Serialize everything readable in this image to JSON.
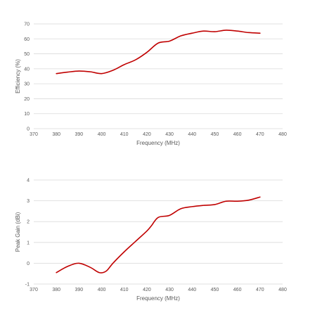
{
  "colors": {
    "series": "#c00000",
    "grid": "#d9d9d9",
    "text": "#595959"
  },
  "chart_data": [
    {
      "type": "line",
      "title": "",
      "xlabel": "Frequency (MHz)",
      "ylabel": "Efficiency (%)",
      "xlim": [
        370,
        480
      ],
      "ylim": [
        0,
        70
      ],
      "xticks": [
        370,
        380,
        390,
        400,
        410,
        420,
        430,
        440,
        450,
        460,
        470,
        480
      ],
      "yticks": [
        0,
        10,
        20,
        30,
        40,
        50,
        60,
        70
      ],
      "grid": "horizontal",
      "legend": "none",
      "series": [
        {
          "color": "#c00000",
          "x": [
            380,
            385,
            390,
            395,
            400,
            405,
            410,
            415,
            420,
            425,
            430,
            435,
            440,
            445,
            450,
            455,
            460,
            465,
            470
          ],
          "y": [
            36.8,
            37.8,
            38.5,
            38.0,
            36.8,
            39.0,
            42.8,
            46.0,
            51.0,
            57.2,
            58.5,
            62.0,
            63.8,
            65.2,
            64.8,
            65.8,
            65.2,
            64.2,
            63.8
          ]
        }
      ]
    },
    {
      "type": "line",
      "title": "",
      "xlabel": "Frequency (MHz)",
      "ylabel": "Peak Gain (dBi)",
      "xlim": [
        370,
        480
      ],
      "ylim": [
        -1,
        4
      ],
      "xticks": [
        370,
        380,
        390,
        400,
        410,
        420,
        430,
        440,
        450,
        460,
        470,
        480
      ],
      "yticks": [
        -1,
        0,
        1,
        2,
        3,
        4
      ],
      "grid": "horizontal",
      "legend": "none",
      "series": [
        {
          "color": "#c00000",
          "x": [
            380,
            385,
            390,
            395,
            399,
            402,
            405,
            410,
            415,
            420,
            422,
            425,
            430,
            435,
            440,
            445,
            450,
            455,
            460,
            465,
            470
          ],
          "y": [
            -0.45,
            -0.15,
            0.0,
            -0.2,
            -0.45,
            -0.38,
            0.0,
            0.55,
            1.05,
            1.55,
            1.8,
            2.2,
            2.3,
            2.62,
            2.72,
            2.78,
            2.82,
            2.98,
            2.98,
            3.03,
            3.18
          ]
        }
      ]
    }
  ]
}
